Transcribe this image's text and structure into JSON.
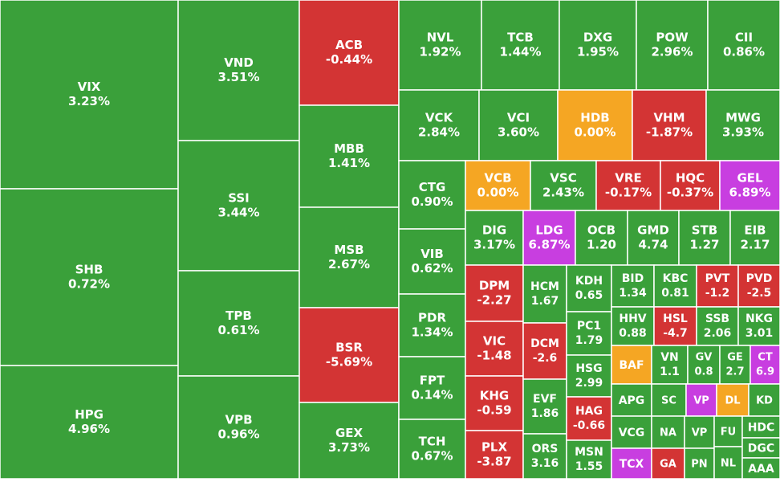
{
  "chart_data": {
    "type": "treemap",
    "tiles": [
      {
        "label": "VIX",
        "value": 3.23,
        "value_label": "3.23%",
        "color": "#3aa03a"
      },
      {
        "label": "SHB",
        "value": 0.72,
        "value_label": "0.72%",
        "color": "#3aa03a"
      },
      {
        "label": "HPG",
        "value": 4.96,
        "value_label": "4.96%",
        "color": "#3aa03a"
      },
      {
        "label": "VND",
        "value": 3.51,
        "value_label": "3.51%",
        "color": "#3aa03a"
      },
      {
        "label": "SSI",
        "value": 3.44,
        "value_label": "3.44%",
        "color": "#3aa03a"
      },
      {
        "label": "TPB",
        "value": 0.61,
        "value_label": "0.61%",
        "color": "#3aa03a"
      },
      {
        "label": "VPB",
        "value": 0.96,
        "value_label": "0.96%",
        "color": "#3aa03a"
      },
      {
        "label": "ACB",
        "value": -0.44,
        "value_label": "-0.44%",
        "color": "#d33434"
      },
      {
        "label": "MBB",
        "value": 1.41,
        "value_label": "1.41%",
        "color": "#3aa03a"
      },
      {
        "label": "MSB",
        "value": 2.67,
        "value_label": "2.67%",
        "color": "#3aa03a"
      },
      {
        "label": "BSR",
        "value": -5.69,
        "value_label": "-5.69%",
        "color": "#d33434"
      },
      {
        "label": "GEX",
        "value": 3.73,
        "value_label": "3.73%",
        "color": "#3aa03a"
      },
      {
        "label": "NVL",
        "value": 1.92,
        "value_label": "1.92%",
        "color": "#3aa03a"
      },
      {
        "label": "TCB",
        "value": 1.44,
        "value_label": "1.44%",
        "color": "#3aa03a"
      },
      {
        "label": "DXG",
        "value": 1.95,
        "value_label": "1.95%",
        "color": "#3aa03a"
      },
      {
        "label": "POW",
        "value": 2.96,
        "value_label": "2.96%",
        "color": "#3aa03a"
      },
      {
        "label": "CII",
        "value": 0.86,
        "value_label": "0.86%",
        "color": "#3aa03a"
      },
      {
        "label": "VCK",
        "value": 2.84,
        "value_label": "2.84%",
        "color": "#3aa03a"
      },
      {
        "label": "VCI",
        "value": 3.6,
        "value_label": "3.60%",
        "color": "#3aa03a"
      },
      {
        "label": "HDB",
        "value": 0,
        "value_label": "0.00%",
        "color": "#f5a623"
      },
      {
        "label": "VHM",
        "value": -1.87,
        "value_label": "-1.87%",
        "color": "#d33434"
      },
      {
        "label": "MWG",
        "value": 3.93,
        "value_label": "3.93%",
        "color": "#3aa03a"
      },
      {
        "label": "CTG",
        "value": 0.9,
        "value_label": "0.90%",
        "color": "#3aa03a"
      },
      {
        "label": "VIB",
        "value": 0.62,
        "value_label": "0.62%",
        "color": "#3aa03a"
      },
      {
        "label": "PDR",
        "value": 1.34,
        "value_label": "1.34%",
        "color": "#3aa03a"
      },
      {
        "label": "FPT",
        "value": 0.14,
        "value_label": "0.14%",
        "color": "#3aa03a"
      },
      {
        "label": "TCH",
        "value": 0.67,
        "value_label": "0.67%",
        "color": "#3aa03a"
      },
      {
        "label": "VCB",
        "value": 0,
        "value_label": "0.00%",
        "color": "#f5a623"
      },
      {
        "label": "VSC",
        "value": 2.43,
        "value_label": "2.43%",
        "color": "#3aa03a"
      },
      {
        "label": "VRE",
        "value": -0.17,
        "value_label": "-0.17%",
        "color": "#d33434"
      },
      {
        "label": "HQC",
        "value": -0.37,
        "value_label": "-0.37%",
        "color": "#d33434"
      },
      {
        "label": "GEL",
        "value": 6.89,
        "value_label": "6.89%",
        "color": "#c83ee0"
      },
      {
        "label": "DIG",
        "value": 3.17,
        "value_label": "3.17%",
        "color": "#3aa03a"
      },
      {
        "label": "LDG",
        "value": 6.87,
        "value_label": "6.87%",
        "color": "#c83ee0"
      },
      {
        "label": "OCB",
        "value": 1.2,
        "value_label": "1.20",
        "color": "#3aa03a"
      },
      {
        "label": "GMD",
        "value": 4.74,
        "value_label": "4.74",
        "color": "#3aa03a"
      },
      {
        "label": "STB",
        "value": 1.27,
        "value_label": "1.27",
        "color": "#3aa03a"
      },
      {
        "label": "EIB",
        "value": 2.17,
        "value_label": "2.17",
        "color": "#3aa03a"
      },
      {
        "label": "DPM",
        "value": -2.27,
        "value_label": "-2.27",
        "color": "#d33434"
      },
      {
        "label": "VIC",
        "value": -1.48,
        "value_label": "-1.48",
        "color": "#d33434"
      },
      {
        "label": "KHG",
        "value": -0.59,
        "value_label": "-0.59",
        "color": "#d33434"
      },
      {
        "label": "PLX",
        "value": -3.87,
        "value_label": "-3.87",
        "color": "#d33434"
      },
      {
        "label": "HCM",
        "value": 1.67,
        "value_label": "1.67",
        "color": "#3aa03a"
      },
      {
        "label": "DCM",
        "value": -2.6,
        "value_label": "-2.6",
        "color": "#d33434"
      },
      {
        "label": "EVF",
        "value": 1.86,
        "value_label": "1.86",
        "color": "#3aa03a"
      },
      {
        "label": "ORS",
        "value": 3.16,
        "value_label": "3.16",
        "color": "#3aa03a"
      },
      {
        "label": "KDH",
        "value": 0.65,
        "value_label": "0.65",
        "color": "#3aa03a"
      },
      {
        "label": "PC1",
        "value": 1.79,
        "value_label": "1.79",
        "color": "#3aa03a"
      },
      {
        "label": "HSG",
        "value": 2.99,
        "value_label": "2.99",
        "color": "#3aa03a"
      },
      {
        "label": "HAG",
        "value": -0.66,
        "value_label": "-0.66",
        "color": "#d33434"
      },
      {
        "label": "MSN",
        "value": 1.55,
        "value_label": "1.55",
        "color": "#3aa03a"
      },
      {
        "label": "BID",
        "value": 1.34,
        "value_label": "1.34",
        "color": "#3aa03a"
      },
      {
        "label": "KBC",
        "value": 0.81,
        "value_label": "0.81",
        "color": "#3aa03a"
      },
      {
        "label": "PVT",
        "value": -1.2,
        "value_label": "-1.2",
        "color": "#d33434"
      },
      {
        "label": "PVD",
        "value": -2.5,
        "value_label": "-2.5",
        "color": "#d33434"
      },
      {
        "label": "HHV",
        "value": 0.88,
        "value_label": "0.88",
        "color": "#3aa03a"
      },
      {
        "label": "HSL",
        "value": -4.7,
        "value_label": "-4.7",
        "color": "#d33434"
      },
      {
        "label": "SSB",
        "value": 2.06,
        "value_label": "2.06",
        "color": "#3aa03a"
      },
      {
        "label": "NKG",
        "value": 3.01,
        "value_label": "3.01",
        "color": "#3aa03a"
      },
      {
        "label": "BAF",
        "color": "#f5a623"
      },
      {
        "label": "VN",
        "value": 1.1,
        "value_label": "1.1",
        "color": "#3aa03a"
      },
      {
        "label": "GV",
        "value": 0.8,
        "value_label": "0.8",
        "color": "#3aa03a"
      },
      {
        "label": "GE",
        "value": 2.7,
        "value_label": "2.7",
        "color": "#3aa03a"
      },
      {
        "label": "CT",
        "value": 6.9,
        "value_label": "6.9",
        "color": "#c83ee0"
      },
      {
        "label": "APG",
        "color": "#3aa03a"
      },
      {
        "label": "SC",
        "color": "#3aa03a"
      },
      {
        "label": "VP",
        "color": "#c83ee0"
      },
      {
        "label": "DL",
        "color": "#f5a623"
      },
      {
        "label": "KD",
        "color": "#3aa03a"
      },
      {
        "label": "VCG",
        "color": "#3aa03a"
      },
      {
        "label": "TCX",
        "color": "#c83ee0"
      },
      {
        "label": "NA",
        "color": "#3aa03a"
      },
      {
        "label": "GA",
        "color": "#d33434"
      },
      {
        "label": "VP",
        "color": "#3aa03a"
      },
      {
        "label": "PN",
        "color": "#3aa03a"
      },
      {
        "label": "FU",
        "color": "#3aa03a"
      },
      {
        "label": "NL",
        "color": "#3aa03a"
      },
      {
        "label": "HDC",
        "color": "#3aa03a"
      },
      {
        "label": "DGC",
        "color": "#3aa03a"
      },
      {
        "label": "AAA",
        "color": "#3aa03a"
      }
    ]
  }
}
